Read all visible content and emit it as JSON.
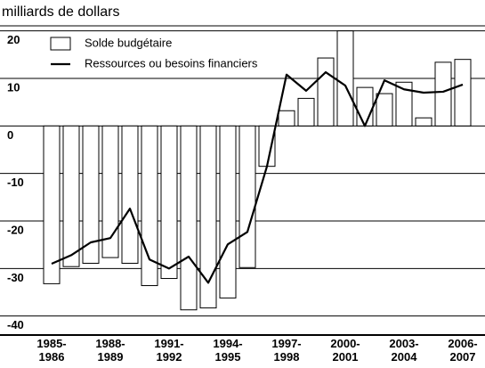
{
  "chart_data": {
    "type": "bar_line",
    "y_label": "milliards de dollars",
    "categories": [
      "1985-\n1986",
      null,
      null,
      "1988-\n1989",
      null,
      null,
      "1991-\n1992",
      null,
      null,
      "1994-\n1995",
      null,
      null,
      "1997-\n1998",
      null,
      null,
      "2000-\n2001",
      null,
      null,
      "2003-\n2004",
      null,
      null,
      "2006-\n2007"
    ],
    "series": [
      {
        "name": "Solde budgétaire",
        "kind": "bar",
        "color": "#ffffff",
        "values": [
          -33.2,
          -29.6,
          -28.9,
          -27.7,
          -28.9,
          -33.6,
          -32.1,
          -38.7,
          -38.3,
          -36.2,
          -29.8,
          -8.5,
          3.2,
          5.8,
          14.3,
          20.0,
          8.1,
          6.8,
          9.2,
          1.7,
          13.4,
          14.0
        ]
      },
      {
        "name": "Ressources ou besoins financiers",
        "kind": "line",
        "color": "#000000",
        "values": [
          -29,
          -27.2,
          -24.5,
          -23.6,
          -17.4,
          -28.1,
          -30,
          -27.5,
          -33,
          -24.9,
          -22.3,
          -8.5,
          10.8,
          7.4,
          11.3,
          8.5,
          0,
          9.6,
          7.7,
          7,
          7.2,
          8.7
        ]
      }
    ],
    "ylim": [
      -44,
      22
    ],
    "yticks": [
      20,
      10,
      0,
      -10,
      -20,
      -30,
      -40
    ],
    "grid": true,
    "legend": "upper left"
  }
}
